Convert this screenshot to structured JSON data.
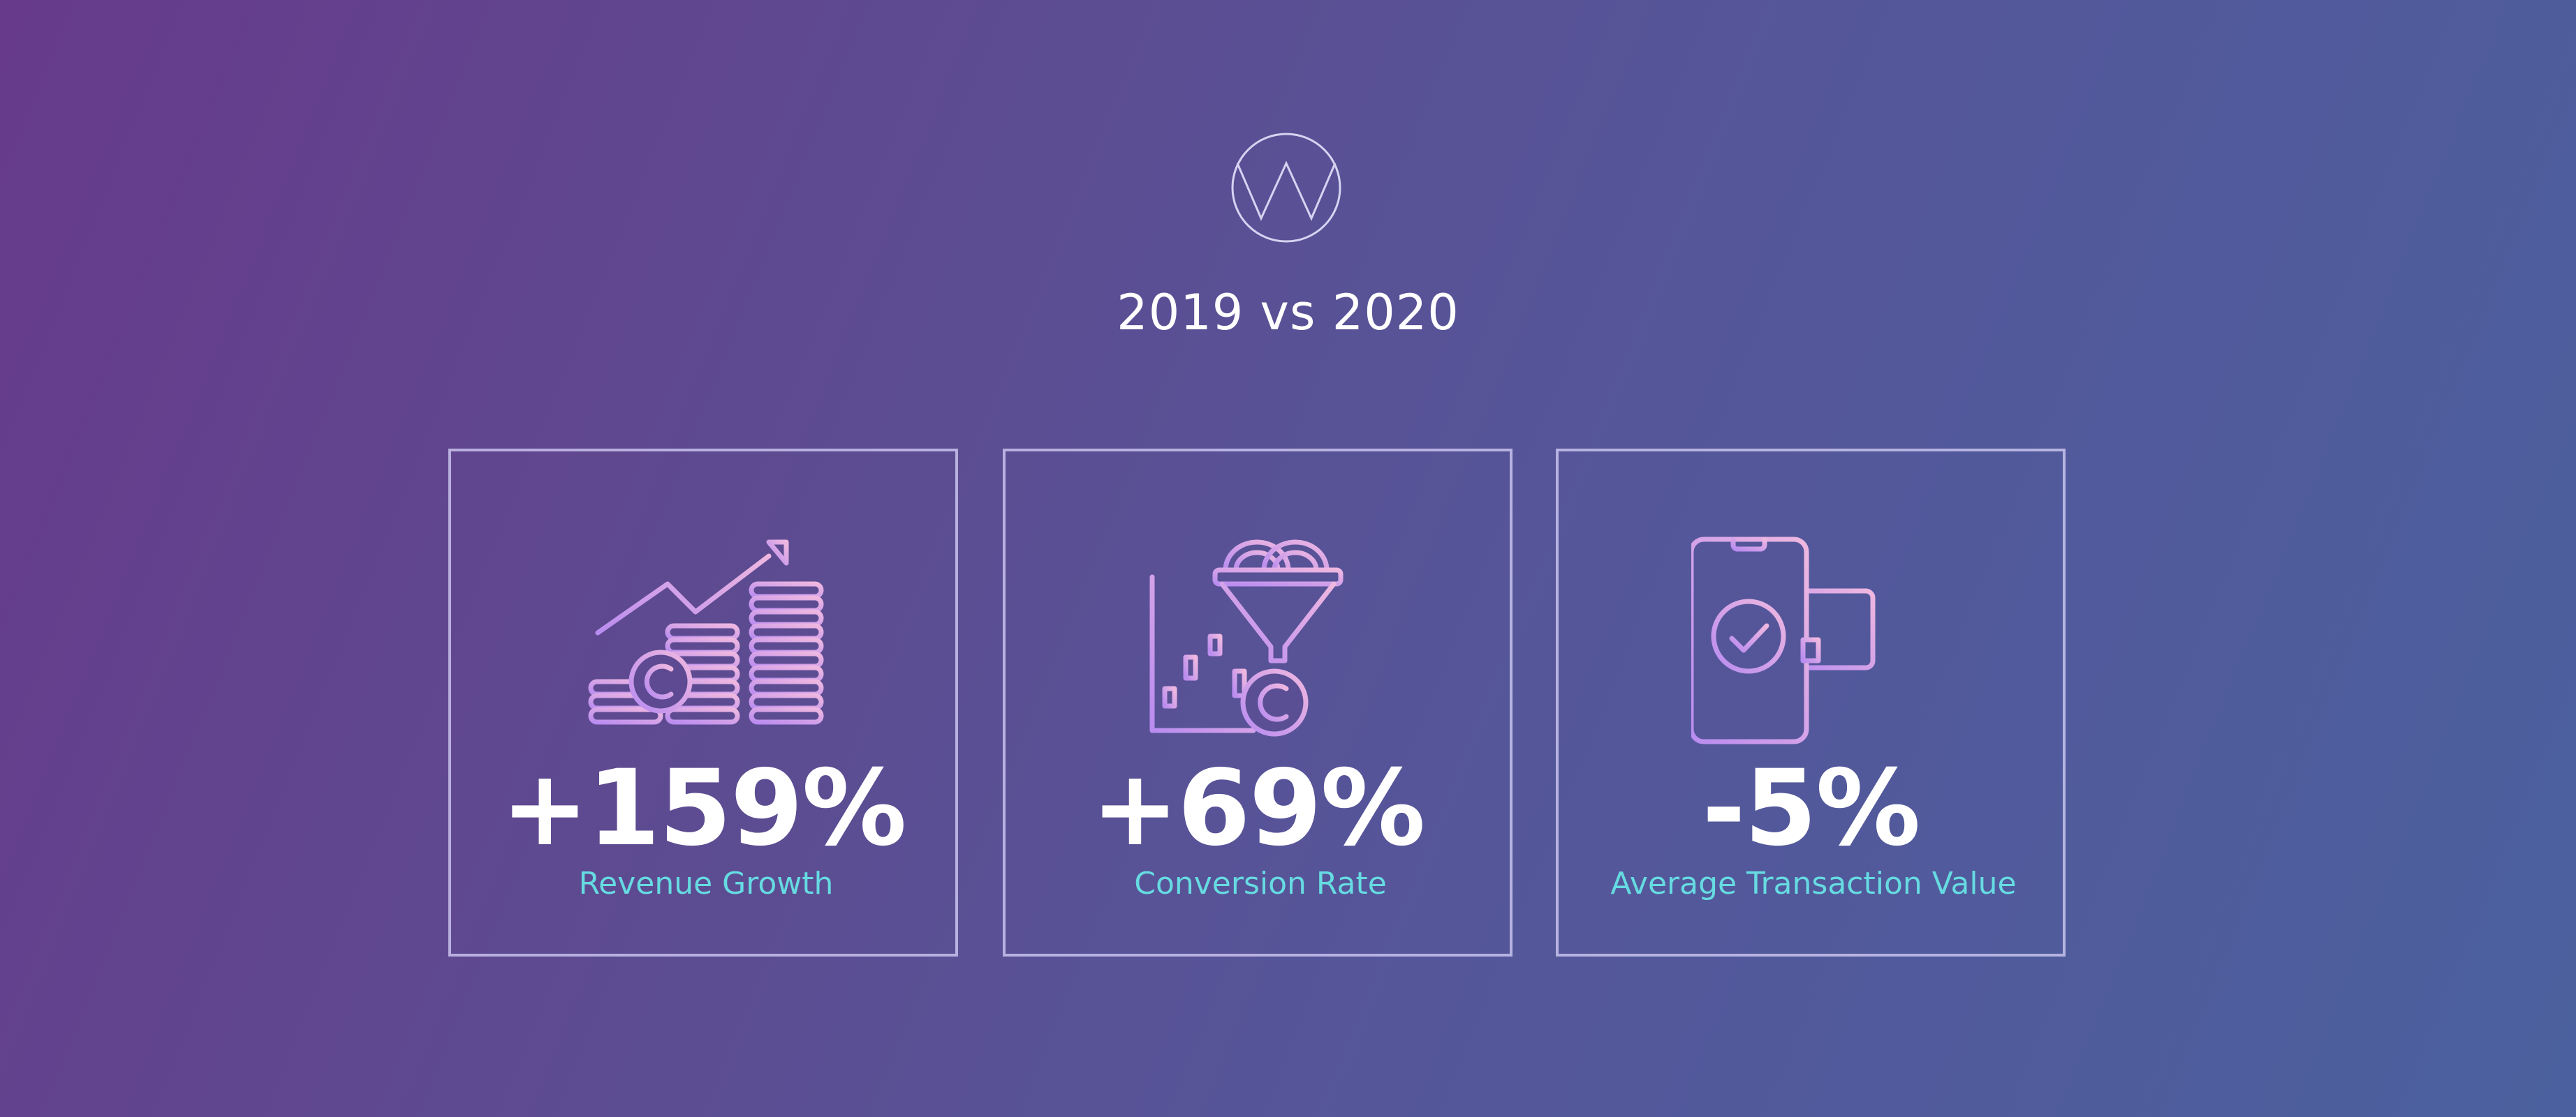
{
  "header": {
    "logo_icon": "w-circle-logo-icon",
    "title": "2019 vs 2020"
  },
  "colors": {
    "accent_label": "#66dbe1",
    "icon_gradient_start": "#c08ef2",
    "icon_gradient_end": "#ecb6e3",
    "card_border": "#d2cdf5"
  },
  "stats": [
    {
      "icon": "revenue-growth-coins-icon",
      "value": "+159%",
      "label": "Revenue Growth"
    },
    {
      "icon": "conversion-funnel-icon",
      "value": "+69%",
      "label": "Conversion Rate"
    },
    {
      "icon": "mobile-payment-card-icon",
      "value": "-5%",
      "label": "Average Transaction Value"
    }
  ]
}
